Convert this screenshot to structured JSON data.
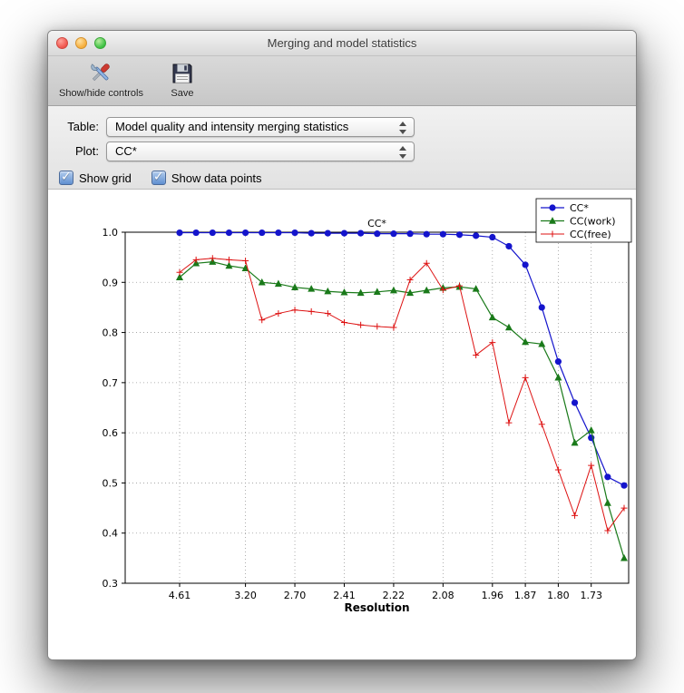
{
  "window": {
    "title": "Merging and model statistics",
    "buttons": [
      {
        "name": "close",
        "color": "#f0544c"
      },
      {
        "name": "minimize",
        "color": "#f6ad3a"
      },
      {
        "name": "zoom",
        "color": "#3dc143"
      }
    ]
  },
  "toolbar": {
    "items": [
      {
        "label": "Show/hide controls",
        "icon": "tools-icon"
      },
      {
        "label": "Save",
        "icon": "save-icon"
      }
    ]
  },
  "controls": {
    "table_label": "Table:",
    "table_value": "Model quality and intensity merging statistics",
    "plot_label": "Plot:",
    "plot_value": "CC*",
    "checkboxes": [
      {
        "label": "Show grid",
        "checked": true
      },
      {
        "label": "Show data points",
        "checked": true
      }
    ]
  },
  "chart_data": {
    "type": "line",
    "title": "CC*",
    "xlabel": "Resolution",
    "ylabel": "",
    "ylim": [
      0.3,
      1.0
    ],
    "yticks": [
      "1.0",
      "0.9",
      "0.8",
      "0.7",
      "0.6",
      "0.5",
      "0.4",
      "0.3"
    ],
    "xtick_labels": [
      "4.61",
      "3.20",
      "2.70",
      "2.41",
      "2.22",
      "2.08",
      "1.96",
      "1.87",
      "1.80",
      "1.73"
    ],
    "xtick_positions": [
      0,
      4,
      7,
      10,
      13,
      16,
      19,
      21,
      23,
      25
    ],
    "n_points": 28,
    "grid": true,
    "show_data_points": true,
    "legend_position": "top-right",
    "series": [
      {
        "name": "CC*",
        "color": "#1414cc",
        "marker": "circle",
        "values": [
          0.999,
          0.999,
          0.999,
          0.999,
          0.999,
          0.999,
          0.999,
          0.999,
          0.998,
          0.998,
          0.998,
          0.998,
          0.997,
          0.997,
          0.997,
          0.996,
          0.996,
          0.995,
          0.993,
          0.99,
          0.972,
          0.935,
          0.85,
          0.742,
          0.66,
          0.59,
          0.512,
          0.495
        ]
      },
      {
        "name": "CC(work)",
        "color": "#1a7a1a",
        "marker": "triangle",
        "values": [
          0.91,
          0.938,
          0.941,
          0.933,
          0.928,
          0.9,
          0.897,
          0.89,
          0.887,
          0.882,
          0.88,
          0.879,
          0.881,
          0.884,
          0.879,
          0.884,
          0.889,
          0.891,
          0.887,
          0.83,
          0.81,
          0.781,
          0.777,
          0.71,
          0.58,
          0.605,
          0.46,
          0.35
        ]
      },
      {
        "name": "CC(free)",
        "color": "#dd1111",
        "marker": "plus",
        "values": [
          0.92,
          0.945,
          0.948,
          0.945,
          0.943,
          0.825,
          0.838,
          0.845,
          0.842,
          0.838,
          0.82,
          0.815,
          0.812,
          0.81,
          0.905,
          0.938,
          0.885,
          0.893,
          0.755,
          0.78,
          0.62,
          0.71,
          0.617,
          0.526,
          0.435,
          0.535,
          0.405,
          0.45
        ]
      }
    ]
  }
}
